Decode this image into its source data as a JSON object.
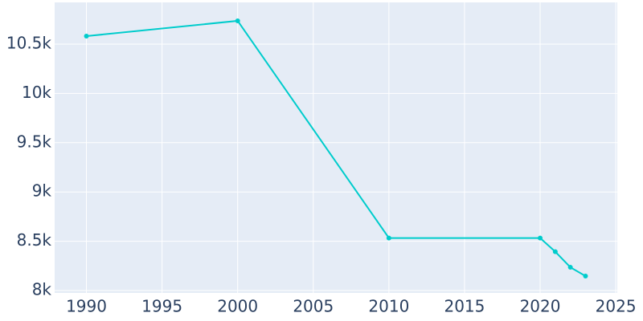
{
  "chart_data": {
    "type": "line",
    "x": [
      1990,
      2000,
      2010,
      2020,
      2021,
      2022,
      2023
    ],
    "series": [
      {
        "color": "#00cccc",
        "values": [
          10581,
          10736,
          8533,
          8533,
          8394,
          8236,
          8147
        ]
      }
    ],
    "xlim": [
      1987.9,
      2025.1
    ],
    "xticks": [
      1990,
      1995,
      2000,
      2005,
      2010,
      2015,
      2020,
      2025
    ],
    "ylim": [
      7976,
      10923
    ],
    "yticks": [
      {
        "value": 8000,
        "label": "8k"
      },
      {
        "value": 8500,
        "label": "8.5k"
      },
      {
        "value": 9000,
        "label": "9k"
      },
      {
        "value": 9500,
        "label": "9.5k"
      },
      {
        "value": 10000,
        "label": "10k"
      },
      {
        "value": 10500,
        "label": "10.5k"
      }
    ],
    "grid": true
  }
}
